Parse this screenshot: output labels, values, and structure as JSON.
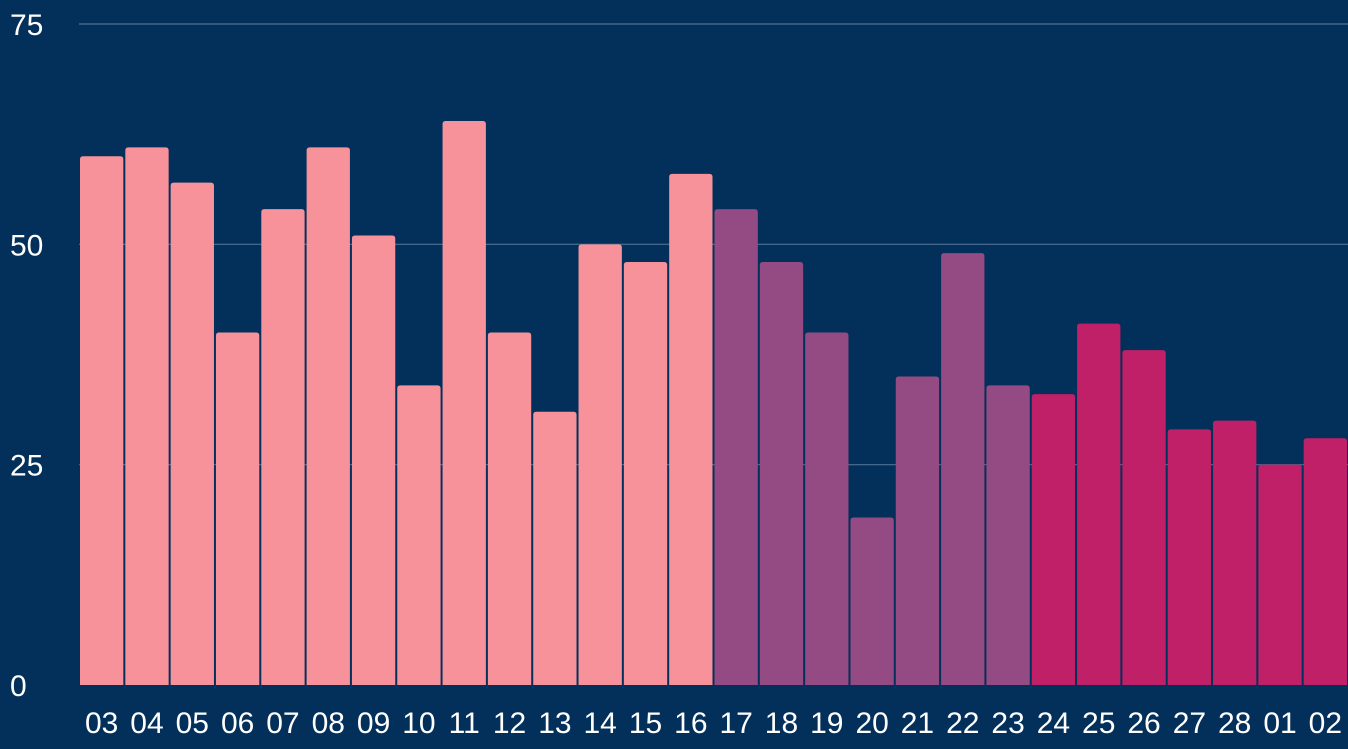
{
  "chart_data": {
    "type": "bar",
    "title": "",
    "xlabel": "",
    "ylabel": "",
    "categories": [
      "03",
      "04",
      "05",
      "06",
      "07",
      "08",
      "09",
      "10",
      "11",
      "12",
      "13",
      "14",
      "15",
      "16",
      "17",
      "18",
      "19",
      "20",
      "21",
      "22",
      "23",
      "24",
      "25",
      "26",
      "27",
      "28",
      "01",
      "02"
    ],
    "values": [
      60,
      61,
      57,
      40,
      54,
      61,
      51,
      34,
      64,
      40,
      31,
      50,
      48,
      58,
      54,
      48,
      40,
      19,
      35,
      49,
      34,
      33,
      41,
      38,
      29,
      30,
      25,
      28
    ],
    "bar_colors": [
      "#f7929a",
      "#f7929a",
      "#f7929a",
      "#f7929a",
      "#f7929a",
      "#f7929a",
      "#f7929a",
      "#f7929a",
      "#f7929a",
      "#f7929a",
      "#f7929a",
      "#f7929a",
      "#f7929a",
      "#f7929a",
      "#944a82",
      "#944a82",
      "#944a82",
      "#944a82",
      "#944a82",
      "#944a82",
      "#944a82",
      "#c02068",
      "#c02068",
      "#c02068",
      "#c02068",
      "#c02068",
      "#c02068",
      "#c02068"
    ],
    "ylim": [
      0,
      75
    ],
    "yticks": [
      0,
      25,
      50,
      75
    ],
    "grid": true,
    "colors": {
      "background": "#03305a",
      "gridline": "#4e6f92",
      "text": "#ffffff"
    }
  }
}
